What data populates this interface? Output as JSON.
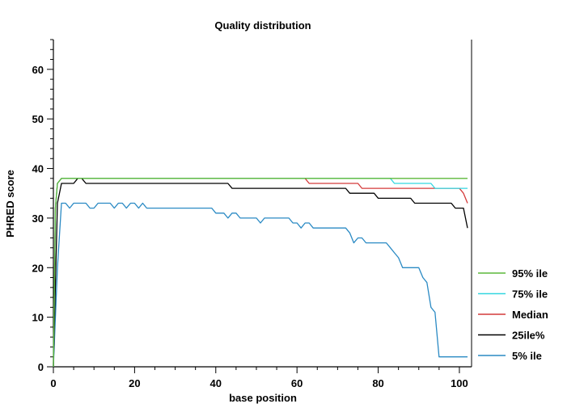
{
  "chart_data": {
    "type": "line",
    "title": "Quality distribution",
    "xlabel": "base position",
    "ylabel": "PHRED score",
    "xlim": [
      0,
      103
    ],
    "ylim": [
      0,
      66
    ],
    "x_ticks": [
      0,
      20,
      40,
      60,
      80,
      100
    ],
    "y_ticks": [
      0,
      10,
      20,
      30,
      40,
      50,
      60
    ],
    "grid": false,
    "legend_position": "right",
    "series": [
      {
        "name": "95% ile",
        "color": "#5cb83a",
        "points": [
          [
            0,
            0
          ],
          [
            0.5,
            32
          ],
          [
            1,
            37
          ],
          [
            2,
            38
          ],
          [
            102,
            38
          ]
        ]
      },
      {
        "name": "75% ile",
        "color": "#33d6e0",
        "points": [
          [
            0,
            0
          ],
          [
            0.5,
            32
          ],
          [
            1,
            37
          ],
          [
            2,
            38
          ],
          [
            83,
            38
          ],
          [
            84,
            37
          ],
          [
            93,
            37
          ],
          [
            94,
            36
          ],
          [
            102,
            36
          ]
        ]
      },
      {
        "name": "Median",
        "color": "#d43a3a",
        "points": [
          [
            0,
            0
          ],
          [
            0.5,
            32
          ],
          [
            1,
            37
          ],
          [
            2,
            38
          ],
          [
            62,
            38
          ],
          [
            63,
            37
          ],
          [
            75,
            37
          ],
          [
            76,
            36
          ],
          [
            100,
            36
          ],
          [
            101,
            35
          ],
          [
            102,
            33
          ]
        ]
      },
      {
        "name": "25ile%",
        "color": "#000000",
        "points": [
          [
            0,
            0
          ],
          [
            1,
            33
          ],
          [
            2,
            37
          ],
          [
            5,
            37
          ],
          [
            6,
            38
          ],
          [
            7,
            38
          ],
          [
            8,
            37
          ],
          [
            43,
            37
          ],
          [
            44,
            36
          ],
          [
            72,
            36
          ],
          [
            73,
            35
          ],
          [
            79,
            35
          ],
          [
            80,
            34
          ],
          [
            88,
            34
          ],
          [
            89,
            33
          ],
          [
            98,
            33
          ],
          [
            99,
            32
          ],
          [
            101,
            32
          ],
          [
            102,
            28
          ]
        ]
      },
      {
        "name": "5% ile",
        "color": "#2a8ac4",
        "points": [
          [
            0,
            0
          ],
          [
            1,
            20
          ],
          [
            2,
            33
          ],
          [
            3,
            33
          ],
          [
            4,
            32
          ],
          [
            5,
            33
          ],
          [
            8,
            33
          ],
          [
            9,
            32
          ],
          [
            10,
            32
          ],
          [
            11,
            33
          ],
          [
            14,
            33
          ],
          [
            15,
            32
          ],
          [
            16,
            33
          ],
          [
            17,
            33
          ],
          [
            18,
            32
          ],
          [
            19,
            33
          ],
          [
            20,
            33
          ],
          [
            21,
            32
          ],
          [
            22,
            33
          ],
          [
            23,
            32
          ],
          [
            39,
            32
          ],
          [
            40,
            31
          ],
          [
            42,
            31
          ],
          [
            43,
            30
          ],
          [
            44,
            31
          ],
          [
            45,
            31
          ],
          [
            46,
            30
          ],
          [
            50,
            30
          ],
          [
            51,
            29
          ],
          [
            52,
            30
          ],
          [
            58,
            30
          ],
          [
            59,
            29
          ],
          [
            60,
            29
          ],
          [
            61,
            28
          ],
          [
            62,
            29
          ],
          [
            63,
            29
          ],
          [
            64,
            28
          ],
          [
            72,
            28
          ],
          [
            73,
            27
          ],
          [
            74,
            25
          ],
          [
            75,
            26
          ],
          [
            76,
            26
          ],
          [
            77,
            25
          ],
          [
            82,
            25
          ],
          [
            83,
            24
          ],
          [
            84,
            23
          ],
          [
            85,
            22
          ],
          [
            86,
            20
          ],
          [
            90,
            20
          ],
          [
            91,
            18
          ],
          [
            92,
            17
          ],
          [
            93,
            12
          ],
          [
            94,
            11
          ],
          [
            95,
            2
          ],
          [
            102,
            2
          ]
        ]
      }
    ]
  }
}
